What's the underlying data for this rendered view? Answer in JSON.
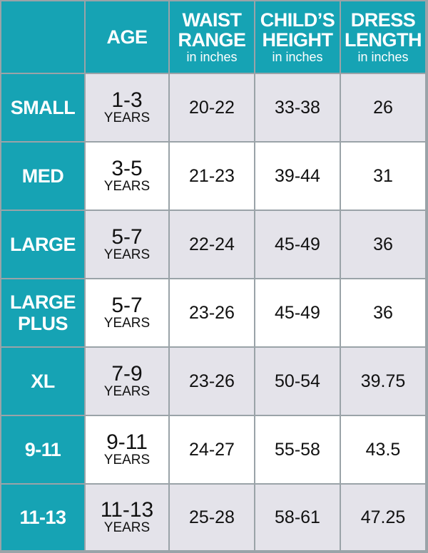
{
  "header": {
    "columns": [
      {
        "title": [
          "AGE"
        ]
      },
      {
        "title": [
          "WAIST",
          "RANGE"
        ],
        "subtitle": "in inches"
      },
      {
        "title": [
          "CHILD’S",
          "HEIGHT"
        ],
        "subtitle": "in inches"
      },
      {
        "title": [
          "DRESS",
          "LENGTH"
        ],
        "subtitle": "in inches"
      }
    ]
  },
  "table": {
    "rows": [
      {
        "size": [
          "SMALL"
        ],
        "age": "1-3",
        "age_unit": "YEARS",
        "waist": "20-22",
        "height": "33-38",
        "length": "26"
      },
      {
        "size": [
          "MED"
        ],
        "age": "3-5",
        "age_unit": "YEARS",
        "waist": "21-23",
        "height": "39-44",
        "length": "31"
      },
      {
        "size": [
          "LARGE"
        ],
        "age": "5-7",
        "age_unit": "YEARS",
        "waist": "22-24",
        "height": "45-49",
        "length": "36"
      },
      {
        "size": [
          "LARGE",
          "PLUS"
        ],
        "age": "5-7",
        "age_unit": "YEARS",
        "waist": "23-26",
        "height": "45-49",
        "length": "36"
      },
      {
        "size": [
          "XL"
        ],
        "age": "7-9",
        "age_unit": "YEARS",
        "waist": "23-26",
        "height": "50-54",
        "length": "39.75"
      },
      {
        "size": [
          "9-11"
        ],
        "age": "9-11",
        "age_unit": "YEARS",
        "waist": "24-27",
        "height": "55-58",
        "length": "43.5"
      },
      {
        "size": [
          "11-13"
        ],
        "age": "11-13",
        "age_unit": "YEARS",
        "waist": "25-28",
        "height": "58-61",
        "length": "47.25"
      }
    ]
  }
}
